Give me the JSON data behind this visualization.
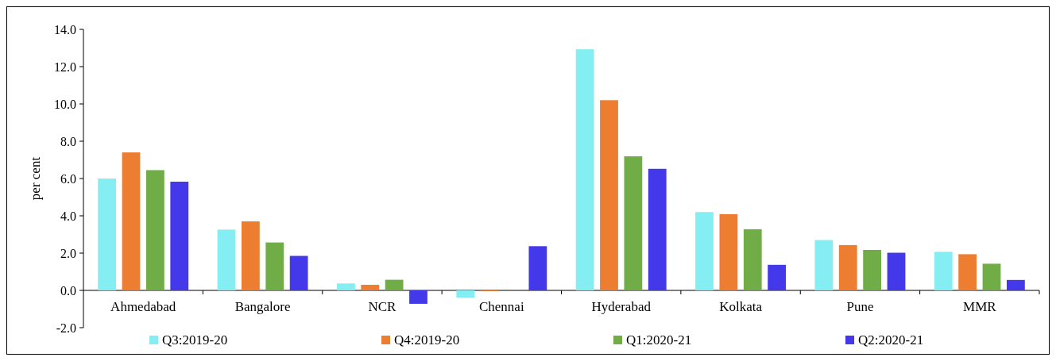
{
  "chart_data": {
    "type": "bar",
    "ylabel": "per cent",
    "categories": [
      "Ahmedabad",
      "Bangalore",
      "NCR",
      "Chennai",
      "Hyderabad",
      "Kolkata",
      "Pune",
      "MMR"
    ],
    "series": [
      {
        "name": "Q3:2019-20",
        "color": "#84eef2",
        "values": [
          6.0,
          3.26,
          0.37,
          -0.39,
          12.93,
          4.2,
          2.7,
          2.07
        ]
      },
      {
        "name": "Q4:2019-20",
        "color": "#ed7d31",
        "values": [
          7.4,
          3.7,
          0.3,
          -0.04,
          10.2,
          4.09,
          2.43,
          1.94
        ]
      },
      {
        "name": "Q1:2020-21",
        "color": "#70ad47",
        "values": [
          6.45,
          2.57,
          0.57,
          null,
          7.19,
          3.28,
          2.17,
          1.43
        ]
      },
      {
        "name": "Q2:2020-21",
        "color": "#4338ea",
        "values": [
          5.83,
          1.85,
          -0.72,
          2.37,
          6.52,
          1.37,
          2.02,
          0.56
        ]
      }
    ],
    "ylim": [
      -2,
      14
    ],
    "yticks": [
      {
        "value": -2,
        "label": "-2.0"
      },
      {
        "value": 0,
        "label": "0.0"
      },
      {
        "value": 2,
        "label": "2.0"
      },
      {
        "value": 4,
        "label": "4.0"
      },
      {
        "value": 6,
        "label": "6.0"
      },
      {
        "value": 8,
        "label": "8.0"
      },
      {
        "value": 10,
        "label": "10.0"
      },
      {
        "value": 12,
        "label": "12.0"
      },
      {
        "value": 14,
        "label": "14.0"
      }
    ],
    "grid": false,
    "legend": "bottom"
  }
}
